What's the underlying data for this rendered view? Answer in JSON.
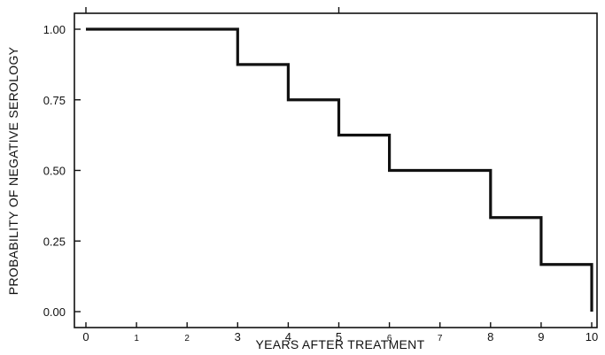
{
  "chart_data": {
    "type": "line",
    "subtype": "step",
    "title": "",
    "xlabel": "YEARS AFTER TREATMENT",
    "ylabel": "PROBABILITY OF NEGATIVE SEROLOGY",
    "xlim": [
      0,
      10
    ],
    "ylim": [
      0,
      1
    ],
    "x_ticks": [
      0,
      1,
      2,
      3,
      4,
      5,
      6,
      7,
      8,
      9,
      10
    ],
    "x_tick_labels": [
      "0",
      "1",
      "2",
      "3",
      "4",
      "5",
      "6",
      "7",
      "8",
      "9",
      "10"
    ],
    "y_ticks": [
      0,
      0.25,
      0.5,
      0.75,
      1
    ],
    "y_tick_labels": [
      "0.00",
      "0.25",
      "0.50",
      "0.75",
      "1.00"
    ],
    "grid": false,
    "legend": "none",
    "series": [
      {
        "x": [
          0,
          3,
          4,
          5,
          6,
          8,
          9,
          10,
          10
        ],
        "y": [
          1.0,
          0.875,
          0.75,
          0.625,
          0.5,
          0.333,
          0.167,
          0.167,
          0.0
        ]
      }
    ]
  }
}
